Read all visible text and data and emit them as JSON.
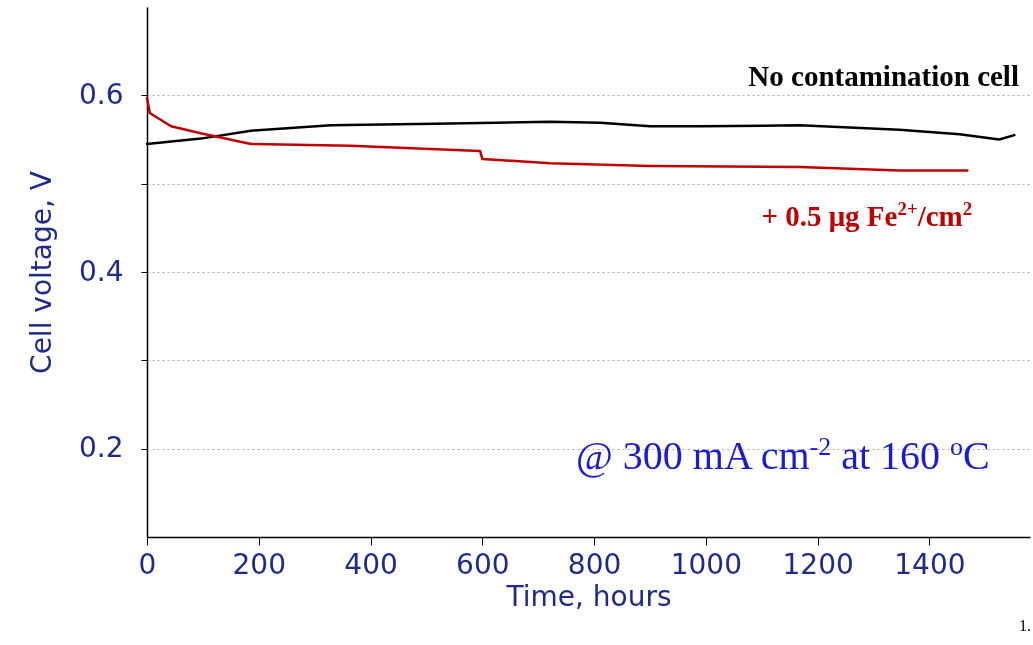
{
  "chart_data": {
    "type": "line",
    "xlabel": "Time, hours",
    "ylabel": "Cell voltage, V",
    "xlim": [
      0,
      1580
    ],
    "xticks": [
      0,
      200,
      400,
      600,
      800,
      1000,
      1200,
      1400
    ],
    "ylim": [
      0.1,
      0.7
    ],
    "yticks": [
      0.2,
      {
        "value": 0.3,
        "label": null
      },
      0.4,
      {
        "value": 0.5,
        "label": null
      },
      0.6
    ],
    "grid": "y",
    "series": [
      {
        "name": "No contamination cell",
        "color": "#000000",
        "x": [
          0,
          96,
          186,
          329,
          543,
          721,
          811,
          900,
          989,
          1168,
          1346,
          1454,
          1525,
          1552
        ],
        "values": [
          0.545,
          0.551,
          0.56,
          0.566,
          0.568,
          0.57,
          0.569,
          0.565,
          0.565,
          0.566,
          0.561,
          0.556,
          0.55,
          0.555
        ]
      },
      {
        "name": "+ 0.5 μg Fe$^{2+}$/cm$^{2}$",
        "color": "#c00000",
        "x": [
          0,
          5,
          43,
          96,
          186,
          364,
          596,
          600,
          721,
          900,
          1168,
          1346,
          1468
        ],
        "values": [
          0.597,
          0.58,
          0.565,
          0.557,
          0.545,
          0.543,
          0.537,
          0.528,
          0.523,
          0.52,
          0.519,
          0.515,
          0.515
        ]
      }
    ],
    "annotations": [
      "@ 300 mA cm$^{-2}$ at 160 $^{o}$C",
      "1."
    ]
  }
}
